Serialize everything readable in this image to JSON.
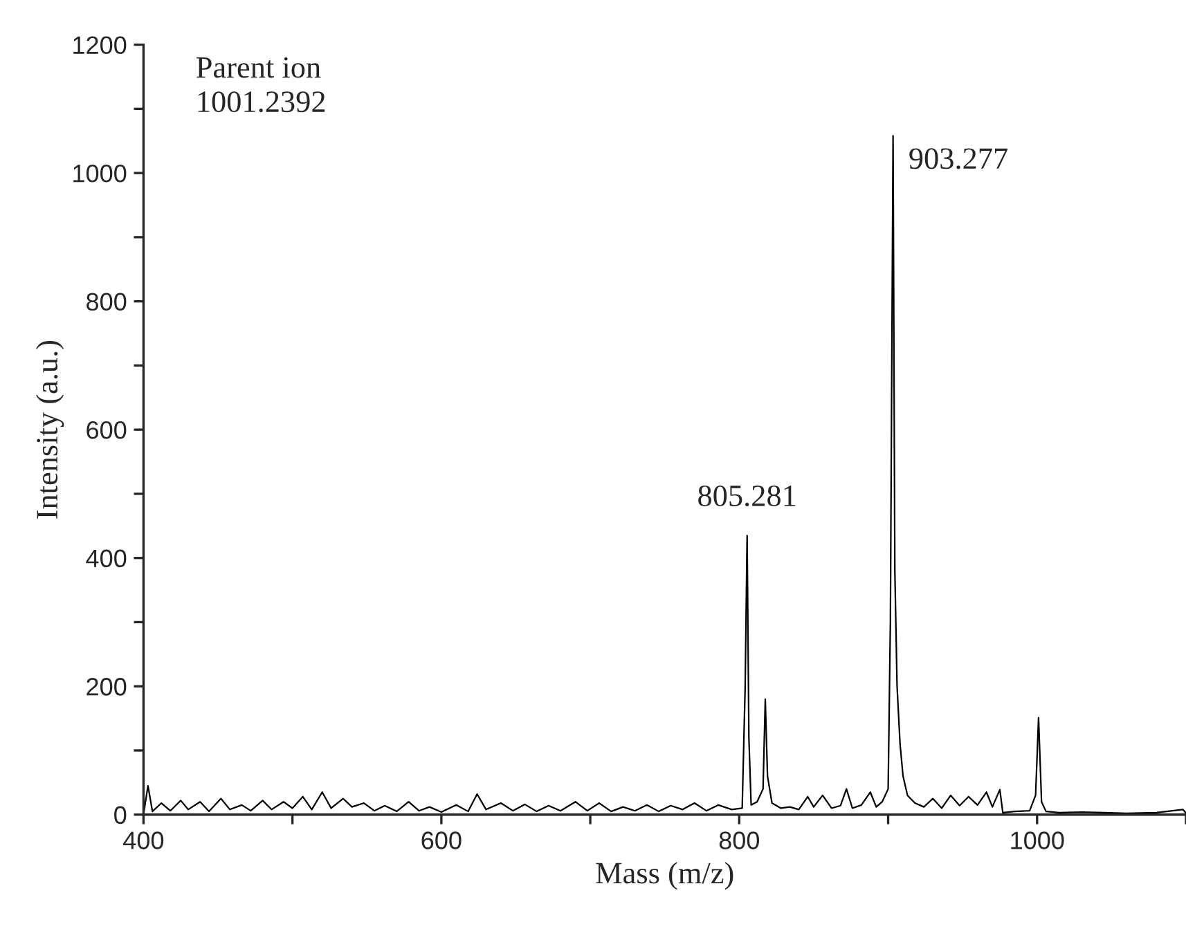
{
  "chart_data": {
    "type": "line",
    "xlabel": "Mass (m/z)",
    "ylabel": "Intensity (a.u.)",
    "xlim": [
      400,
      1100
    ],
    "ylim": [
      0,
      1200
    ],
    "xticks": [
      400,
      {
        "value": 500,
        "label": null
      },
      600,
      {
        "value": 700,
        "label": null
      },
      800,
      {
        "value": 900,
        "label": null
      },
      1000,
      {
        "value": 1100,
        "label": null
      }
    ],
    "yticks": [
      0,
      {
        "value": 100,
        "label": null
      },
      200,
      {
        "value": 300,
        "label": null
      },
      400,
      {
        "value": 500,
        "label": null
      },
      600,
      {
        "value": 700,
        "label": null
      },
      800,
      {
        "value": 900,
        "label": null
      },
      1000,
      {
        "value": 1100,
        "label": null
      },
      1200
    ],
    "grid": false,
    "line_style": "solid",
    "annotations": [
      "Parent ion\n1001.2392",
      {
        "text": "805.281",
        "x": 805.281,
        "y": 435
      },
      {
        "text": "903.277",
        "x": 903.277,
        "y": 1058
      }
    ],
    "series": [
      {
        "color": "#000000",
        "x": [
          400,
          403,
          406,
          412,
          418,
          425,
          430,
          438,
          444,
          452,
          458,
          466,
          472,
          480,
          486,
          494,
          500,
          507,
          513,
          520,
          526,
          534,
          540,
          548,
          555,
          562,
          570,
          578,
          585,
          592,
          600,
          610,
          618,
          624,
          630,
          640,
          648,
          656,
          664,
          672,
          680,
          690,
          698,
          706,
          714,
          722,
          730,
          738,
          746,
          754,
          762,
          770,
          778,
          786,
          795,
          802,
          804,
          805.3,
          806.5,
          808,
          812,
          816,
          817.5,
          819,
          822,
          828,
          834,
          840,
          846,
          850,
          856,
          862,
          868,
          872,
          876,
          882,
          888,
          892,
          896,
          900,
          901.5,
          903.3,
          904.5,
          906,
          908,
          910,
          913,
          918,
          924,
          930,
          936,
          942,
          948,
          954,
          960,
          966,
          970,
          975,
          977,
          985,
          995,
          999,
          1001,
          1003,
          1006,
          1015,
          1030,
          1045,
          1060,
          1080,
          1098,
          1100
        ],
        "values": [
          0,
          45,
          5,
          18,
          6,
          22,
          8,
          20,
          5,
          25,
          8,
          15,
          6,
          22,
          8,
          20,
          10,
          28,
          8,
          35,
          10,
          25,
          12,
          18,
          6,
          14,
          5,
          20,
          6,
          12,
          4,
          15,
          5,
          32,
          8,
          18,
          6,
          16,
          5,
          14,
          6,
          20,
          6,
          18,
          5,
          12,
          6,
          15,
          5,
          14,
          8,
          18,
          6,
          15,
          8,
          10,
          200,
          435,
          120,
          15,
          20,
          40,
          180,
          60,
          18,
          10,
          12,
          8,
          28,
          12,
          30,
          10,
          14,
          40,
          10,
          15,
          35,
          12,
          20,
          40,
          300,
          1058,
          380,
          200,
          110,
          60,
          30,
          18,
          12,
          25,
          10,
          30,
          14,
          28,
          15,
          35,
          12,
          39,
          3,
          5,
          6,
          30,
          151,
          20,
          5,
          3,
          4,
          3,
          2,
          3,
          8,
          2
        ]
      }
    ]
  }
}
